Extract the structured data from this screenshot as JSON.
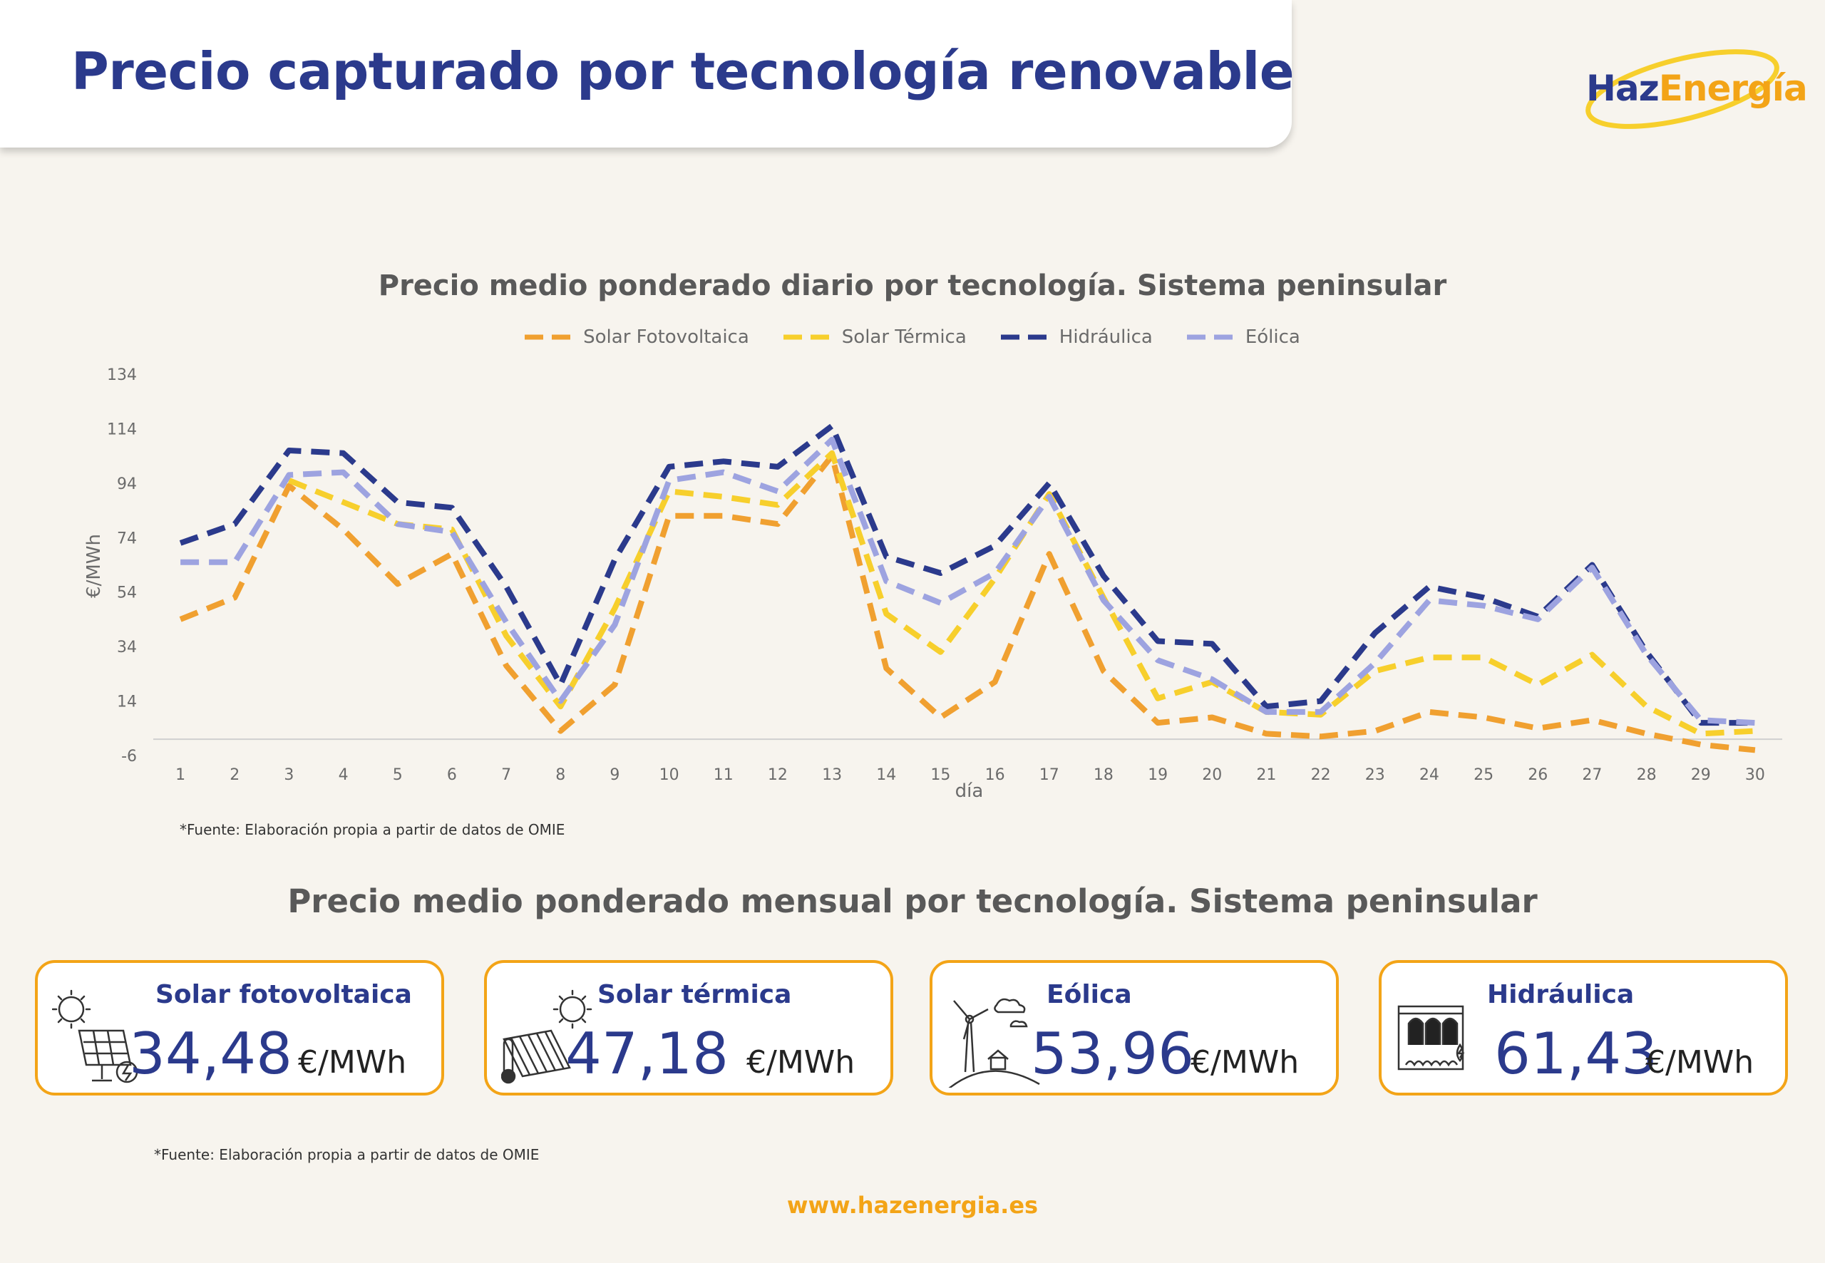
{
  "header": {
    "title": "Precio capturado por tecnología renovable"
  },
  "logo": {
    "part1": "Haz",
    "part2": "Energía"
  },
  "colors": {
    "accent": "#f3a417",
    "brand": "#2b3a8c",
    "background": "#f7f4ee",
    "solar_fv": "#f0a030",
    "solar_termica": "#f7cf2c",
    "hidraulica": "#2b3a8c",
    "eolica": "#9da3e0"
  },
  "chart_data": {
    "type": "line",
    "title": "Precio medio ponderado diario por tecnología. Sistema peninsular",
    "xlabel": "día",
    "ylabel": "€/MWh",
    "ylim": [
      -6,
      134
    ],
    "yticks": [
      "134",
      "114",
      "94",
      "74",
      "54",
      "34",
      "14",
      "-6"
    ],
    "x": [
      "1",
      "2",
      "3",
      "4",
      "5",
      "6",
      "7",
      "8",
      "9",
      "10",
      "11",
      "12",
      "13",
      "14",
      "15",
      "16",
      "17",
      "18",
      "19",
      "20",
      "21",
      "22",
      "23",
      "24",
      "25",
      "26",
      "27",
      "28",
      "29",
      "30"
    ],
    "legend_position": "top",
    "grid": false,
    "series": [
      {
        "name": "Solar Fotovoltaica",
        "color": "#f0a030",
        "values": [
          44,
          52,
          93,
          77,
          57,
          68,
          27,
          3,
          20,
          82,
          82,
          79,
          104,
          26,
          8,
          21,
          68,
          25,
          6,
          8,
          2,
          1,
          3,
          10,
          8,
          4,
          7,
          2,
          -2,
          -4
        ]
      },
      {
        "name": "Solar Térmica",
        "color": "#f7cf2c",
        "values": [
          null,
          null,
          95,
          87,
          79,
          77,
          38,
          12,
          48,
          91,
          89,
          86,
          105,
          46,
          32,
          59,
          90,
          52,
          15,
          21,
          10,
          9,
          25,
          30,
          30,
          20,
          31,
          12,
          2,
          3
        ]
      },
      {
        "name": "Hidráulica",
        "color": "#2b3a8c",
        "values": [
          72,
          79,
          106,
          105,
          87,
          85,
          56,
          20,
          66,
          100,
          102,
          100,
          115,
          67,
          61,
          71,
          94,
          60,
          36,
          35,
          12,
          14,
          39,
          56,
          52,
          45,
          64,
          32,
          6,
          6
        ]
      },
      {
        "name": "Eólica",
        "color": "#9da3e0",
        "values": [
          65,
          65,
          97,
          98,
          79,
          76,
          43,
          14,
          42,
          95,
          98,
          91,
          110,
          58,
          50,
          61,
          89,
          51,
          29,
          22,
          10,
          10,
          28,
          51,
          49,
          44,
          63,
          31,
          7,
          6
        ]
      }
    ]
  },
  "source_note": "*Fuente:  Elaboración propia a partir de datos de OMIE",
  "monthly": {
    "title": "Precio medio ponderado mensual por tecnología. Sistema peninsular",
    "cards": [
      {
        "label": "Solar fotovoltaica",
        "value": "34,48",
        "unit": "€/MWh",
        "icon": "solar-panel-icon"
      },
      {
        "label": "Solar térmica",
        "value": "47,18",
        "unit": "€/MWh",
        "icon": "solar-thermal-icon"
      },
      {
        "label": "Eólica",
        "value": "53,96",
        "unit": "€/MWh",
        "icon": "wind-turbine-icon"
      },
      {
        "label": "Hidráulica",
        "value": "61,43",
        "unit": "€/MWh",
        "icon": "hydro-dam-icon"
      }
    ]
  },
  "footer": {
    "url": "www.hazenergia.es"
  }
}
